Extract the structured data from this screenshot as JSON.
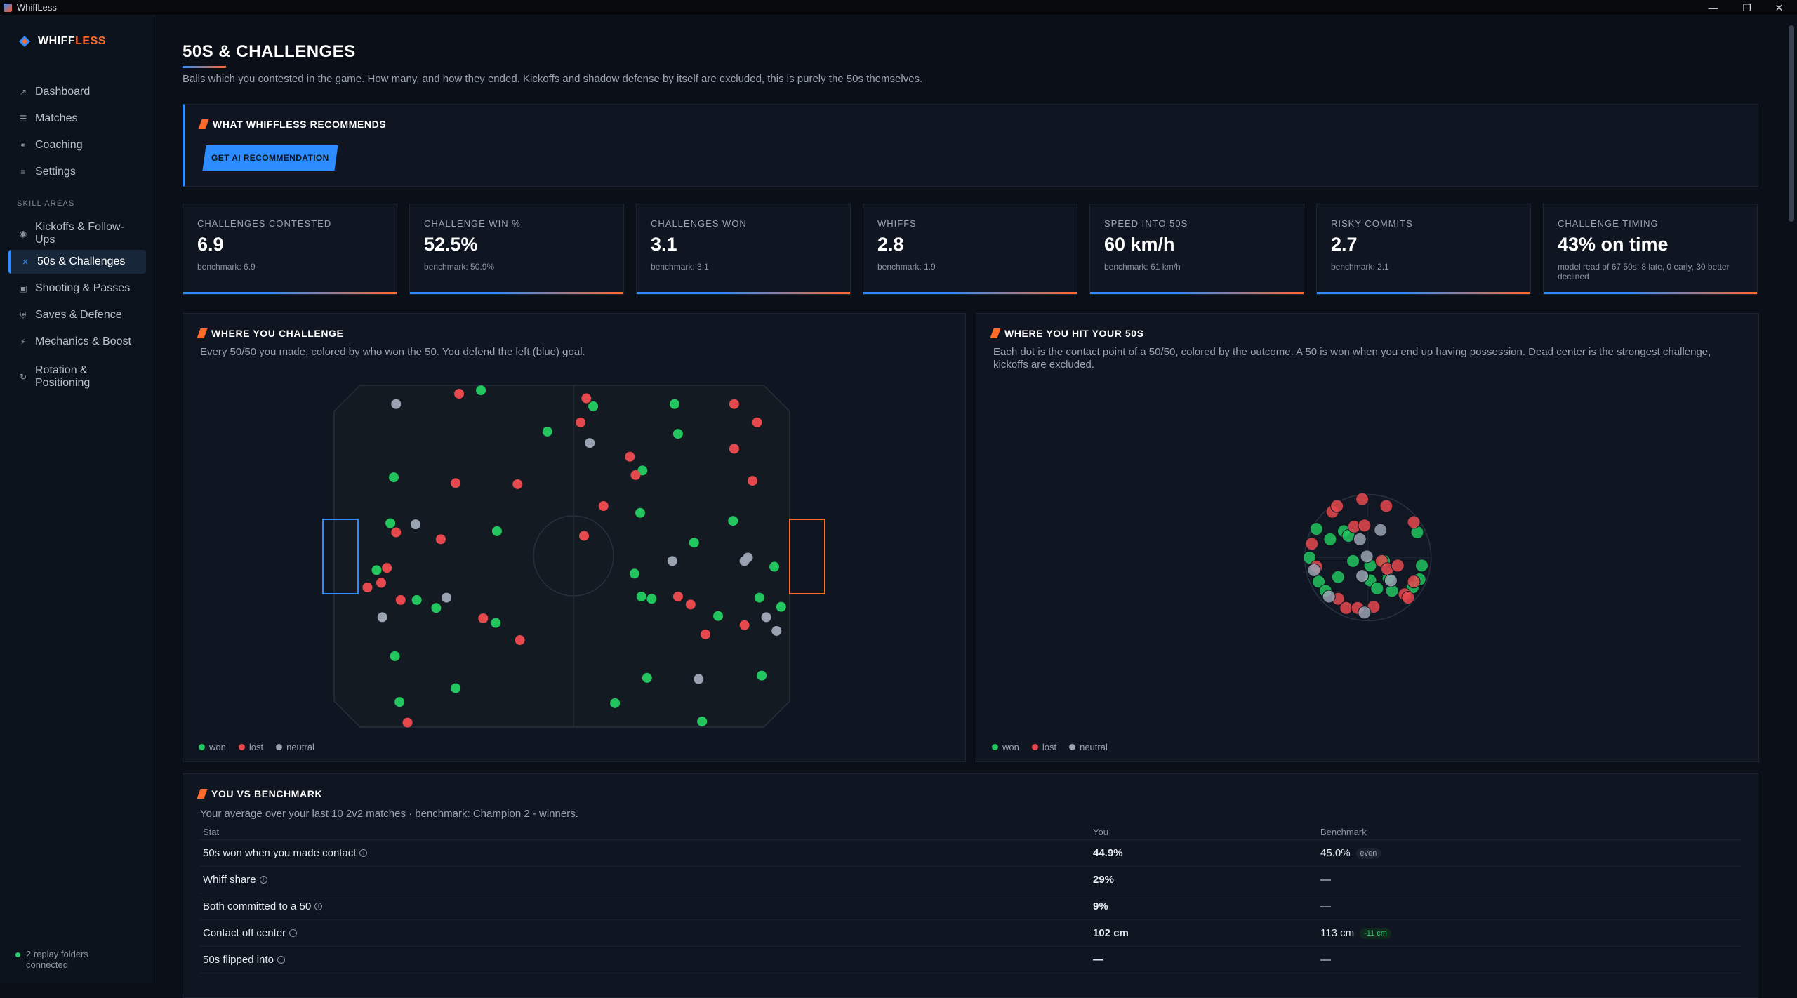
{
  "window": {
    "title": "WhiffLess"
  },
  "brand": {
    "name_a": "WHIFF",
    "name_b": "LESS"
  },
  "sidebar": {
    "items": [
      {
        "label": "Dashboard",
        "icon": "chart-icon"
      },
      {
        "label": "Matches",
        "icon": "list-icon"
      },
      {
        "label": "Coaching",
        "icon": "headset-icon"
      },
      {
        "label": "Settings",
        "icon": "sliders-icon"
      }
    ],
    "section_label": "SKILL AREAS",
    "skills": [
      {
        "label": "Kickoffs & Follow-Ups",
        "icon": "eye-icon"
      },
      {
        "label": "50s & Challenges",
        "icon": "cross-icon",
        "active": true
      },
      {
        "label": "Shooting & Passes",
        "icon": "goal-icon"
      },
      {
        "label": "Saves & Defence",
        "icon": "shield-icon"
      },
      {
        "label": "Mechanics & Boost",
        "icon": "bolt-icon"
      },
      {
        "label": "Rotation & Positioning",
        "icon": "rotate-icon"
      }
    ],
    "footer": "2 replay folders connected"
  },
  "page": {
    "title": "50S & CHALLENGES",
    "subtitle": "Balls which you contested in the game. How many, and how they ended. Kickoffs and shadow defense by itself are excluded, this is purely the 50s themselves."
  },
  "recommend": {
    "title": "WHAT WHIFFLESS RECOMMENDS",
    "button": "GET AI RECOMMENDATION"
  },
  "stats": [
    {
      "label": "CHALLENGES CONTESTED",
      "value": "6.9",
      "bench": "benchmark: 6.9"
    },
    {
      "label": "CHALLENGE WIN %",
      "value": "52.5%",
      "bench": "benchmark: 50.9%"
    },
    {
      "label": "CHALLENGES WON",
      "value": "3.1",
      "bench": "benchmark: 3.1"
    },
    {
      "label": "WHIFFS",
      "value": "2.8",
      "bench": "benchmark: 1.9"
    },
    {
      "label": "SPEED INTO 50S",
      "value": "60 km/h",
      "bench": "benchmark: 61 km/h"
    },
    {
      "label": "RISKY COMMITS",
      "value": "2.7",
      "bench": "benchmark: 2.1"
    },
    {
      "label": "CHALLENGE TIMING",
      "value": "43% on time",
      "bench": "model read of 67 50s: 8 late, 0 early, 30 better declined"
    }
  ],
  "where_challenge": {
    "title": "WHERE YOU CHALLENGE",
    "desc": "Every 50/50 you made, colored by who won the 50. You defend the left (blue) goal."
  },
  "where_hit": {
    "title": "WHERE YOU HIT YOUR 50S",
    "desc": "Each dot is the contact point of a 50/50, colored by the outcome. A 50 is won when you end up having possession. Dead center is the strongest challenge, kickoffs are excluded."
  },
  "legend": {
    "won": "won",
    "lost": "lost",
    "neutral": "neutral"
  },
  "colors": {
    "won": "#22c55e",
    "lost": "#e5484d",
    "neutral": "#9aa3b1",
    "accent_blue": "#2d8cff",
    "accent_orange": "#ff6a2a"
  },
  "pitch_points": {
    "won": [
      [
        419,
        340
      ],
      [
        477,
        376
      ],
      [
        517,
        354
      ],
      [
        588,
        352
      ],
      [
        591,
        378
      ],
      [
        343,
        416
      ],
      [
        560,
        410
      ],
      [
        558,
        447
      ],
      [
        433,
        463
      ],
      [
        605,
        473
      ],
      [
        639,
        454
      ],
      [
        675,
        494
      ],
      [
        553,
        500
      ],
      [
        328,
        497
      ],
      [
        363,
        523
      ],
      [
        380,
        530
      ],
      [
        432,
        543
      ],
      [
        559,
        520
      ],
      [
        568,
        522
      ],
      [
        626,
        537
      ],
      [
        662,
        521
      ],
      [
        681,
        529
      ],
      [
        344,
        572
      ],
      [
        397,
        600
      ],
      [
        348,
        612
      ],
      [
        564,
        591
      ],
      [
        536,
        613
      ],
      [
        612,
        629
      ],
      [
        664,
        589
      ],
      [
        340,
        456
      ]
    ],
    "lost": [
      [
        400,
        343
      ],
      [
        511,
        347
      ],
      [
        506,
        368
      ],
      [
        640,
        352
      ],
      [
        660,
        368
      ],
      [
        640,
        391
      ],
      [
        549,
        398
      ],
      [
        554,
        414
      ],
      [
        397,
        421
      ],
      [
        451,
        422
      ],
      [
        656,
        419
      ],
      [
        526,
        441
      ],
      [
        345,
        464
      ],
      [
        384,
        470
      ],
      [
        509,
        467
      ],
      [
        337,
        495
      ],
      [
        332,
        508
      ],
      [
        320,
        512
      ],
      [
        349,
        523
      ],
      [
        421,
        539
      ],
      [
        591,
        520
      ],
      [
        602,
        527
      ],
      [
        649,
        545
      ],
      [
        615,
        553
      ],
      [
        453,
        558
      ],
      [
        355,
        630
      ]
    ],
    "neutral": [
      [
        345,
        352
      ],
      [
        514,
        386
      ],
      [
        362,
        457
      ],
      [
        586,
        489
      ],
      [
        652,
        486
      ],
      [
        649,
        489
      ],
      [
        389,
        521
      ],
      [
        333,
        538
      ],
      [
        668,
        538
      ],
      [
        677,
        550
      ],
      [
        609,
        592
      ]
    ]
  },
  "hit_points": {
    "won": [
      [
        1148,
        461
      ],
      [
        1160,
        470
      ],
      [
        1172,
        463
      ],
      [
        1236,
        464
      ],
      [
        1142,
        486
      ],
      [
        1167,
        503
      ],
      [
        1195,
        493
      ],
      [
        1207,
        489
      ],
      [
        1240,
        493
      ],
      [
        1238,
        505
      ],
      [
        1150,
        507
      ],
      [
        1156,
        515
      ],
      [
        1195,
        506
      ],
      [
        1211,
        504
      ],
      [
        1201,
        513
      ],
      [
        1214,
        515
      ],
      [
        1176,
        467
      ],
      [
        1180,
        489
      ],
      [
        1232,
        512
      ]
    ],
    "lost": [
      [
        1162,
        446
      ],
      [
        1166,
        441
      ],
      [
        1188,
        435
      ],
      [
        1209,
        441
      ],
      [
        1181,
        459
      ],
      [
        1190,
        458
      ],
      [
        1233,
        455
      ],
      [
        1144,
        474
      ],
      [
        1148,
        494
      ],
      [
        1205,
        489
      ],
      [
        1210,
        496
      ],
      [
        1219,
        493
      ],
      [
        1167,
        522
      ],
      [
        1174,
        530
      ],
      [
        1225,
        518
      ],
      [
        1228,
        521
      ],
      [
        1233,
        507
      ],
      [
        1184,
        530
      ],
      [
        1198,
        529
      ]
    ],
    "neutral": [
      [
        1186,
        470
      ],
      [
        1204,
        462
      ],
      [
        1146,
        497
      ],
      [
        1188,
        502
      ],
      [
        1213,
        506
      ],
      [
        1159,
        520
      ],
      [
        1190,
        534
      ],
      [
        1192,
        485
      ]
    ]
  },
  "benchmark": {
    "title": "YOU VS BENCHMARK",
    "desc": "Your average over your last 10 2v2 matches · benchmark: Champion 2 - winners.",
    "headers": {
      "stat": "Stat",
      "you": "You",
      "bench": "Benchmark"
    },
    "rows": [
      {
        "stat": "50s won when you made contact",
        "you": "44.9%",
        "bench": "45.0%",
        "chip": "even",
        "chip_kind": "neutral"
      },
      {
        "stat": "Whiff share",
        "you": "29%",
        "bench": "—",
        "chip": "",
        "chip_kind": ""
      },
      {
        "stat": "Both committed to a 50",
        "you": "9%",
        "bench": "—",
        "chip": "",
        "chip_kind": ""
      },
      {
        "stat": "Contact off center",
        "you": "102 cm",
        "bench": "113 cm",
        "chip": "-11 cm",
        "chip_kind": "good"
      },
      {
        "stat": "50s flipped into",
        "you": "—",
        "bench": "—",
        "chip": "",
        "chip_kind": ""
      }
    ]
  }
}
